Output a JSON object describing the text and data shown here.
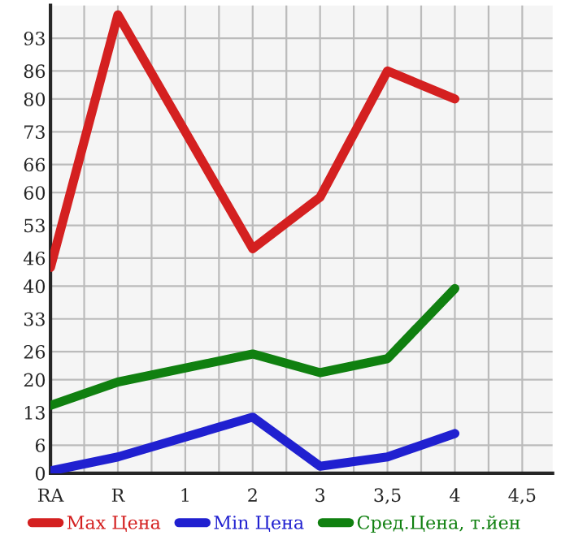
{
  "chart_data": {
    "type": "line",
    "categories": [
      "RA",
      "R",
      "1",
      "2",
      "3",
      "3,5",
      "4",
      "4,5"
    ],
    "ylim": [
      0,
      100
    ],
    "yticks": [
      0,
      6,
      13,
      20,
      26,
      33,
      40,
      46,
      53,
      60,
      66,
      73,
      80,
      86,
      93
    ],
    "series": [
      {
        "name": "Max Цена",
        "color": "#d42020",
        "values": [
          44,
          98,
          null,
          48,
          59,
          86,
          80,
          null
        ]
      },
      {
        "name": "Min Цена",
        "color": "#2020d0",
        "values": [
          0.5,
          3.5,
          null,
          12,
          1.5,
          3.5,
          8.5,
          null
        ]
      },
      {
        "name": "Сред.Цена, т.йен",
        "color": "#108010",
        "values": [
          14.5,
          19.5,
          null,
          25.5,
          21.5,
          24.5,
          39.5,
          null
        ]
      }
    ],
    "grid": true,
    "legend": "bottom",
    "marker": "none",
    "line_style": "solid"
  }
}
